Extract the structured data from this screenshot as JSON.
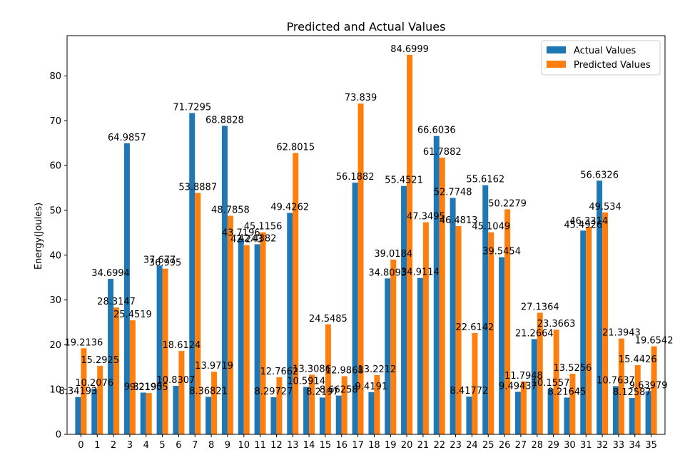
{
  "chart_data": {
    "type": "bar",
    "title": "Predicted and Actual Values",
    "xlabel": "",
    "ylabel": "Energy(Joules)",
    "ylim": [
      0,
      89
    ],
    "yticks": [
      0,
      10,
      20,
      30,
      40,
      50,
      60,
      70,
      80
    ],
    "grid": false,
    "legend_position": "top-right",
    "categories": [
      "0",
      "1",
      "2",
      "3",
      "4",
      "5",
      "6",
      "7",
      "8",
      "9",
      "10",
      "11",
      "12",
      "13",
      "14",
      "15",
      "16",
      "17",
      "18",
      "19",
      "20",
      "21",
      "22",
      "23",
      "24",
      "25",
      "26",
      "27",
      "28",
      "29",
      "30",
      "31",
      "32",
      "33",
      "34",
      "35"
    ],
    "series": [
      {
        "name": "Actual Values",
        "color": "#1f77b4",
        "values": [
          8.34193,
          10.2076,
          34.6994,
          64.9857,
          9.32195,
          37.677,
          10.8307,
          71.7295,
          8.36821,
          68.8828,
          43.7196,
          42.4382,
          8.29727,
          49.4262,
          10.5914,
          8.2197,
          8.66258,
          56.1882,
          9.4191,
          34.8093,
          55.4521,
          34.9114,
          66.6036,
          52.7748,
          8.41772,
          55.6162,
          39.5454,
          9.49437,
          21.2664,
          10.1557,
          8.21645,
          45.4926,
          56.6326,
          10.7637,
          8.12587,
          9.63979
        ],
        "labels": [
          "8.34193",
          "10.2076",
          "34.6994",
          "64.9857",
          "9.32195",
          "37.677",
          "10.8307",
          "71.7295",
          "8.36821",
          "68.8828",
          "43.7196",
          "42.4382",
          "8.29727",
          "49.4262",
          "10.5914",
          "8.2197",
          "8.66258",
          "56.1882",
          "9.4191",
          "34.8093",
          "55.4521",
          "34.9114",
          "66.6036",
          "52.7748",
          "8.41772",
          "55.6162",
          "39.5454",
          "9.49437",
          "21.2664",
          "10.1557",
          "8.21645",
          "45.4926",
          "56.6326",
          "10.7637",
          "8.12587",
          "9.63979"
        ]
      },
      {
        "name": "Predicted Values",
        "color": "#ff7f0e",
        "values": [
          19.2136,
          15.2925,
          28.3147,
          25.4519,
          9.21905,
          36.995,
          18.6124,
          53.8887,
          13.9719,
          48.7858,
          42.243,
          45.1156,
          12.7662,
          62.8015,
          13.3086,
          24.5485,
          12.9868,
          73.839,
          13.2212,
          39.0184,
          84.6999,
          47.3495,
          61.7882,
          46.4813,
          22.6142,
          45.1049,
          50.2279,
          11.7948,
          27.1364,
          23.3663,
          13.5256,
          46.3314,
          49.534,
          21.3943,
          15.4426,
          19.6542
        ],
        "labels": [
          "19.2136",
          "15.2925",
          "28.3147",
          "25.4519",
          "9.21905",
          "36.995",
          "18.6124",
          "53.8887",
          "13.9719",
          "48.7858",
          "42.243",
          "45.1156",
          "12.7662",
          "62.8015",
          "13.3086",
          "24.5485",
          "12.9868",
          "73.839",
          "13.2212",
          "39.0184",
          "84.6999",
          "47.3495",
          "61.7882",
          "46.4813",
          "22.6142",
          "45.1049",
          "50.2279",
          "11.7948",
          "27.1364",
          "23.3663",
          "13.5256",
          "46.3314",
          "49.534",
          "21.3943",
          "15.4426",
          "19.6542"
        ]
      }
    ]
  }
}
